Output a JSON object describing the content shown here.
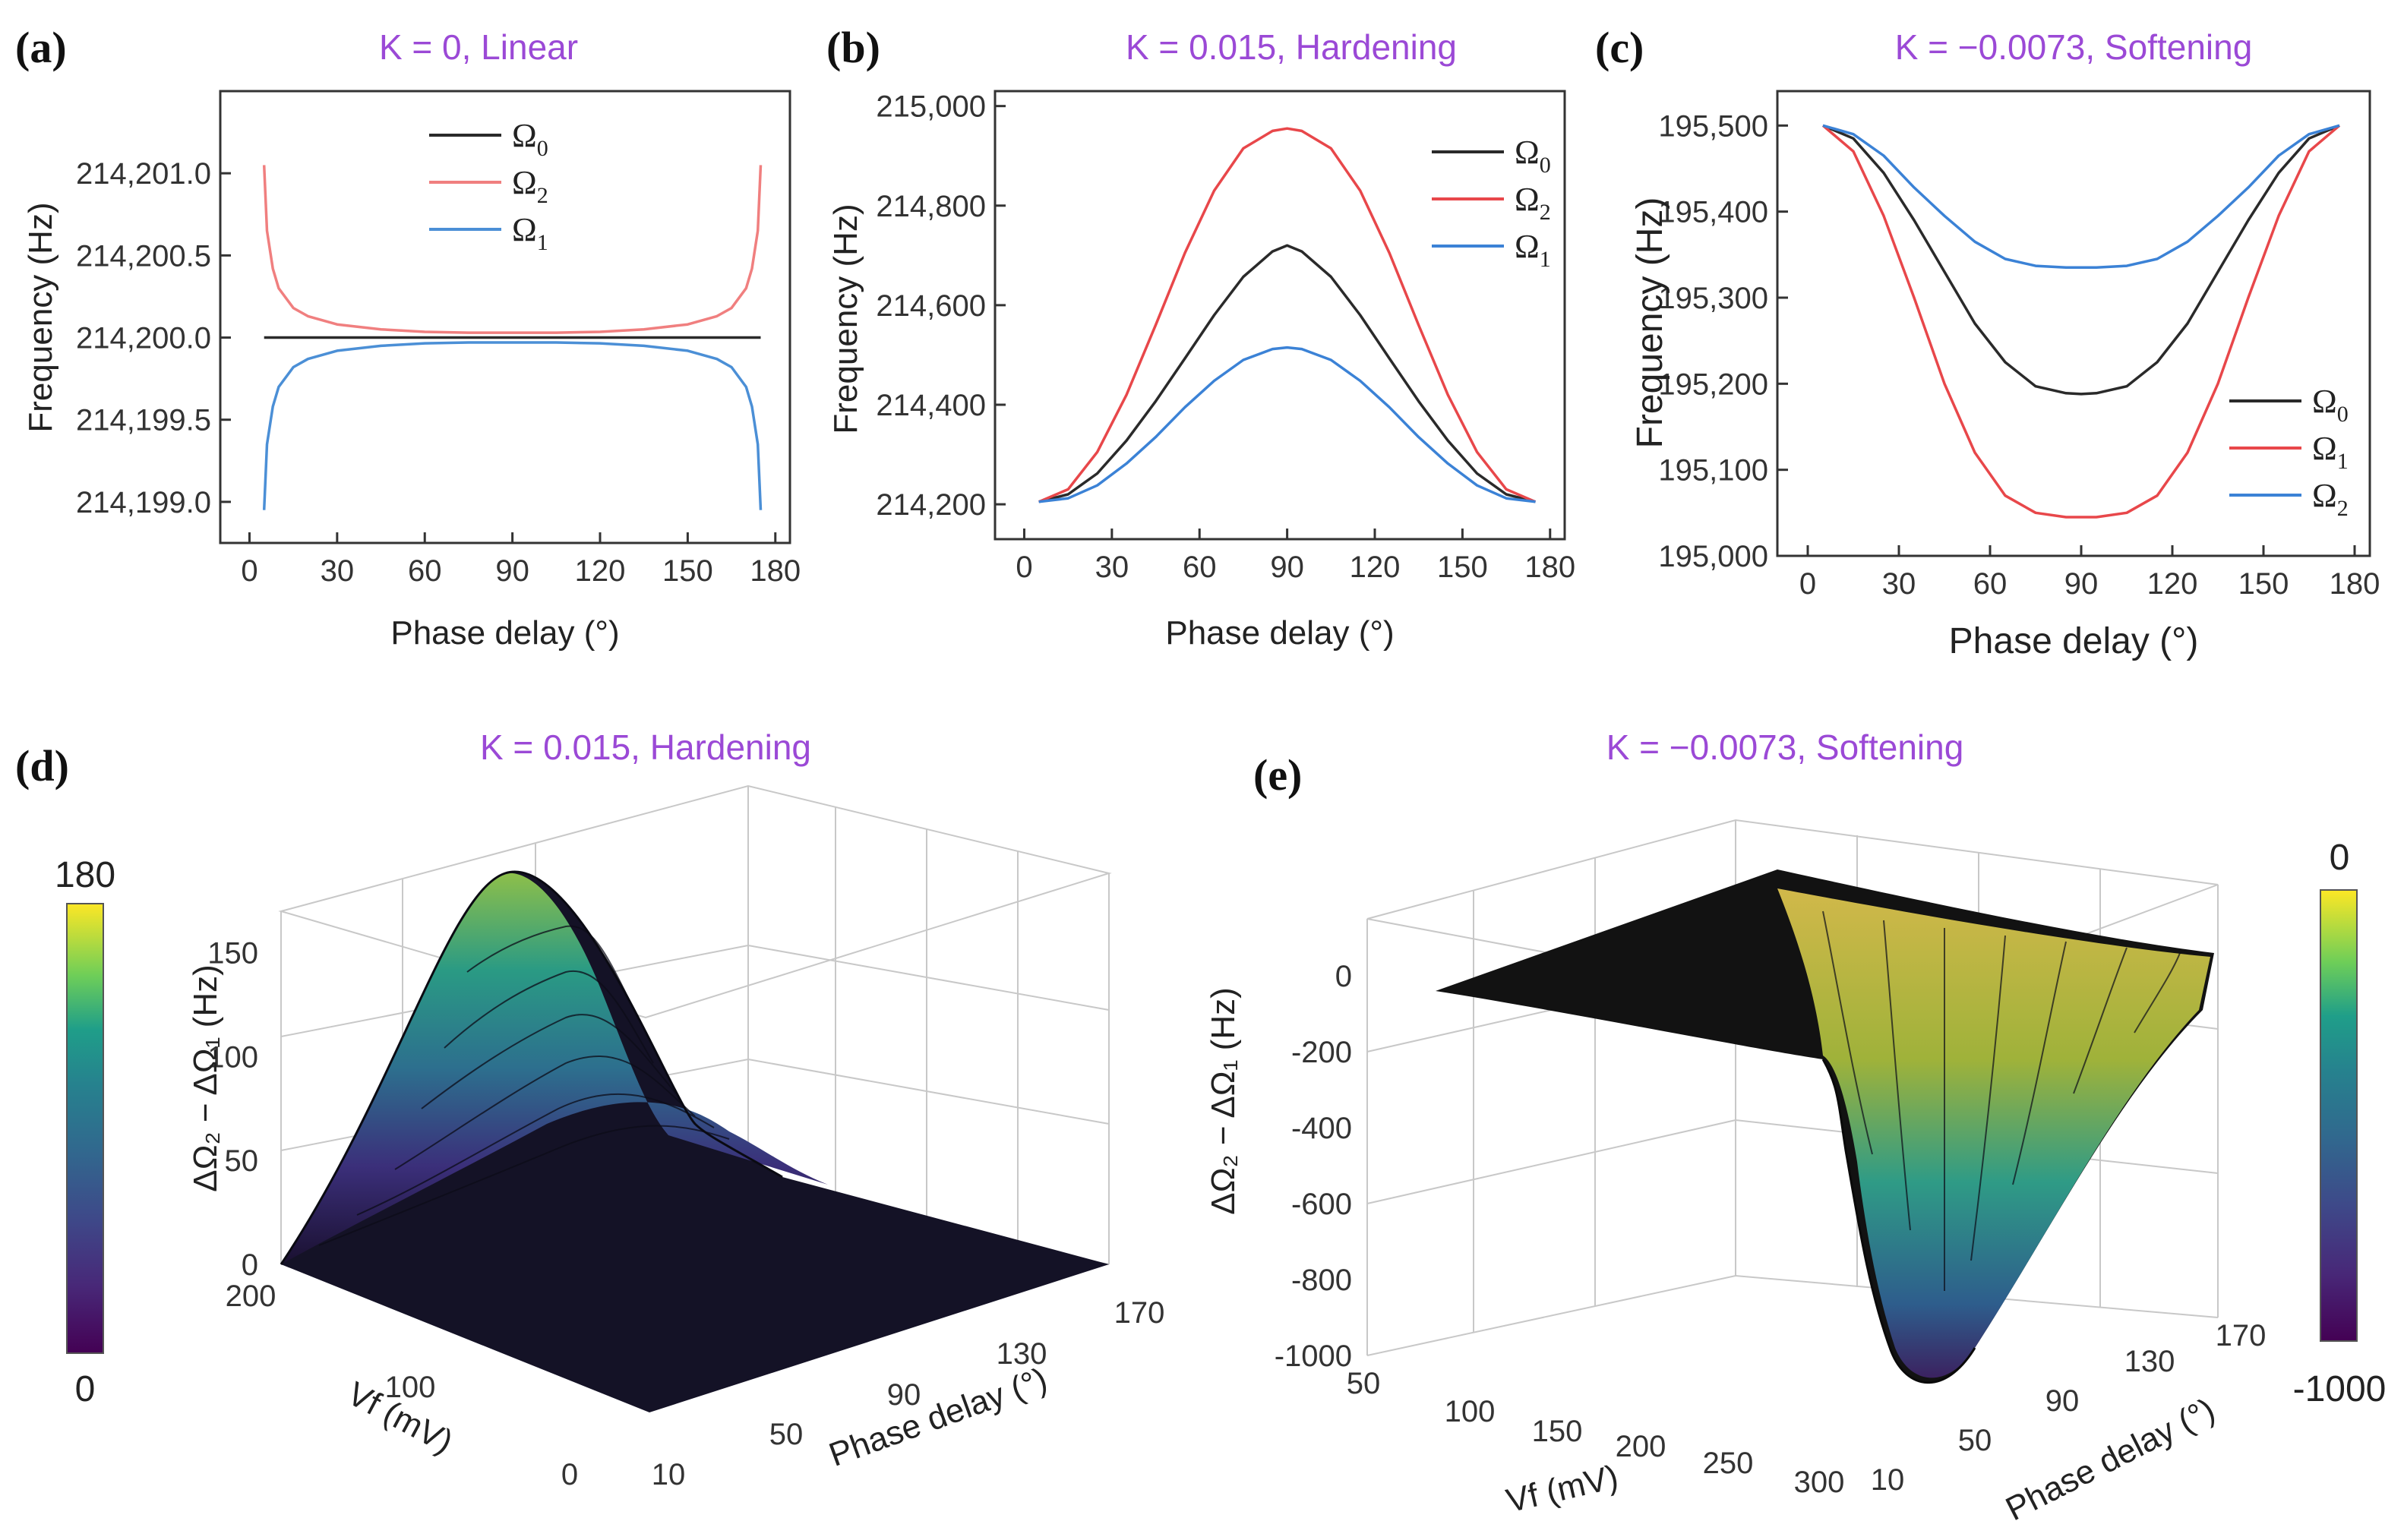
{
  "colors": {
    "black": "#2a2a2a",
    "red": "#e8474a",
    "blue": "#3b82d6",
    "redLight": "#f07f7f",
    "blueLight": "#4b8fd6",
    "title": "#9b49d6"
  },
  "chart_data": [
    {
      "id": "a",
      "panel_label": "(a)",
      "title": "K = 0, Linear",
      "type": "line",
      "xlabel": "Phase delay (°)",
      "ylabel": "Frequency (Hz)",
      "xlim": [
        -10,
        185
      ],
      "ylim": [
        214198.75,
        214201.5
      ],
      "xticks": [
        0,
        30,
        60,
        90,
        120,
        150,
        180
      ],
      "yticks": [
        214199.0,
        214199.5,
        214200.0,
        214200.5,
        214201.0
      ],
      "yticklabels": [
        "214,199.0",
        "214,199.5",
        "214,200.0",
        "214,200.5",
        "214,201.0"
      ],
      "x": [
        5,
        6,
        8,
        10,
        15,
        20,
        30,
        45,
        60,
        75,
        90,
        105,
        120,
        135,
        150,
        160,
        165,
        170,
        172,
        174,
        175
      ],
      "series": [
        {
          "name": "Ω0",
          "color": "black",
          "values": [
            214200.0,
            214200.0,
            214200.0,
            214200.0,
            214200.0,
            214200.0,
            214200.0,
            214200.0,
            214200.0,
            214200.0,
            214200.0,
            214200.0,
            214200.0,
            214200.0,
            214200.0,
            214200.0,
            214200.0,
            214200.0,
            214200.0,
            214200.0,
            214200.0
          ]
        },
        {
          "name": "Ω2",
          "color": "redLight",
          "values": [
            214201.05,
            214200.65,
            214200.42,
            214200.3,
            214200.18,
            214200.13,
            214200.08,
            214200.05,
            214200.035,
            214200.03,
            214200.03,
            214200.03,
            214200.035,
            214200.05,
            214200.08,
            214200.13,
            214200.18,
            214200.3,
            214200.42,
            214200.65,
            214201.05
          ]
        },
        {
          "name": "Ω1",
          "color": "blueLight",
          "values": [
            214198.95,
            214199.35,
            214199.58,
            214199.7,
            214199.82,
            214199.87,
            214199.92,
            214199.95,
            214199.965,
            214199.97,
            214199.97,
            214199.97,
            214199.965,
            214199.95,
            214199.92,
            214199.87,
            214199.82,
            214199.7,
            214199.58,
            214199.35,
            214198.95
          ]
        }
      ],
      "legend": [
        {
          "label": "Ω",
          "sub": "0",
          "color": "black"
        },
        {
          "label": "Ω",
          "sub": "2",
          "color": "redLight"
        },
        {
          "label": "Ω",
          "sub": "1",
          "color": "blueLight"
        }
      ],
      "legend_position": "top-center"
    },
    {
      "id": "b",
      "panel_label": "(b)",
      "title": "K = 0.015, Hardening",
      "type": "line",
      "xlabel": "Phase delay (°)",
      "ylabel": "Frequency (Hz)",
      "xlim": [
        -10,
        185
      ],
      "ylim": [
        214130,
        215030
      ],
      "xticks": [
        0,
        30,
        60,
        90,
        120,
        150,
        180
      ],
      "yticks": [
        214200,
        214400,
        214600,
        214800,
        215000
      ],
      "yticklabels": [
        "214,200",
        "214,400",
        "214,600",
        "214,800",
        "215,000"
      ],
      "x": [
        5,
        15,
        25,
        35,
        45,
        55,
        65,
        75,
        85,
        90,
        95,
        105,
        115,
        125,
        135,
        145,
        155,
        165,
        175
      ],
      "series": [
        {
          "name": "Ω0",
          "color": "black",
          "values": [
            214205,
            214220,
            214262,
            214328,
            214407,
            214493,
            214580,
            214657,
            214708,
            214720,
            214708,
            214657,
            214580,
            214493,
            214407,
            214328,
            214262,
            214220,
            214205
          ]
        },
        {
          "name": "Ω2",
          "color": "red",
          "values": [
            214205,
            214230,
            214305,
            214420,
            214560,
            214705,
            214830,
            214915,
            214950,
            214955,
            214950,
            214915,
            214830,
            214705,
            214560,
            214420,
            214305,
            214230,
            214205
          ]
        },
        {
          "name": "Ω1",
          "color": "blue",
          "values": [
            214205,
            214212,
            214238,
            214282,
            214335,
            214395,
            214448,
            214490,
            214512,
            214515,
            214512,
            214490,
            214448,
            214395,
            214335,
            214282,
            214238,
            214212,
            214205
          ]
        }
      ],
      "legend": [
        {
          "label": "Ω",
          "sub": "0",
          "color": "black"
        },
        {
          "label": "Ω",
          "sub": "2",
          "color": "red"
        },
        {
          "label": "Ω",
          "sub": "1",
          "color": "blue"
        }
      ],
      "legend_position": "top-right"
    },
    {
      "id": "c",
      "panel_label": "(c)",
      "title": "K = −0.0073, Softening",
      "type": "line",
      "xlabel": "Phase delay (°)",
      "ylabel": "Frequency (Hz)",
      "xlim": [
        -10,
        185
      ],
      "ylim": [
        195000,
        195540
      ],
      "xticks": [
        0,
        30,
        60,
        90,
        120,
        150,
        180
      ],
      "yticks": [
        195000,
        195100,
        195200,
        195300,
        195400,
        195500
      ],
      "yticklabels": [
        "195,000",
        "195,100",
        "195,200",
        "195,300",
        "195,400",
        "195,500"
      ],
      "x": [
        5,
        15,
        25,
        35,
        45,
        55,
        65,
        75,
        85,
        90,
        95,
        105,
        115,
        125,
        135,
        145,
        155,
        165,
        175
      ],
      "series": [
        {
          "name": "Ω0",
          "color": "black",
          "values": [
            195500,
            195485,
            195445,
            195390,
            195330,
            195270,
            195225,
            195197,
            195189,
            195188,
            195189,
            195197,
            195225,
            195270,
            195330,
            195390,
            195445,
            195485,
            195500
          ]
        },
        {
          "name": "Ω1",
          "color": "red",
          "values": [
            195500,
            195470,
            195395,
            195300,
            195200,
            195120,
            195070,
            195050,
            195045,
            195045,
            195045,
            195050,
            195070,
            195120,
            195200,
            195300,
            195395,
            195470,
            195500
          ]
        },
        {
          "name": "Ω2",
          "color": "blue",
          "values": [
            195500,
            195490,
            195465,
            195428,
            195395,
            195365,
            195345,
            195337,
            195335,
            195335,
            195335,
            195337,
            195345,
            195365,
            195395,
            195428,
            195465,
            195490,
            195500
          ]
        }
      ],
      "legend": [
        {
          "label": "Ω",
          "sub": "0",
          "color": "black"
        },
        {
          "label": "Ω",
          "sub": "1",
          "color": "red"
        },
        {
          "label": "Ω",
          "sub": "2",
          "color": "blue"
        }
      ],
      "legend_position": "bottom-right"
    },
    {
      "id": "d",
      "panel_label": "(d)",
      "title": "K = 0.015, Hardening",
      "type": "surface",
      "zlabel": "ΔΩ₂ − ΔΩ₁ (Hz)",
      "vlabel": "Vf (mV)",
      "plabel": "Phase delay (°)",
      "zticks": [
        0,
        50,
        100,
        150
      ],
      "zlim": [
        0,
        170
      ],
      "vticks": [
        0,
        100,
        200
      ],
      "pticks": [
        10,
        50,
        90,
        130,
        170
      ],
      "peak": {
        "phase_deg": 90,
        "vf_mv": 220,
        "value_hz": 170
      },
      "colorbar": {
        "min": "0",
        "max": "180"
      }
    },
    {
      "id": "e",
      "panel_label": "(e)",
      "title": "K = −0.0073, Softening",
      "type": "surface",
      "zlabel": "ΔΩ₂ − ΔΩ₁ (Hz)",
      "vlabel": "Vf (mV)",
      "plabel": "Phase delay (°)",
      "zticks": [
        0,
        -200,
        -400,
        -600,
        -800,
        -1000
      ],
      "zlim": [
        -1000,
        150
      ],
      "vticks": [
        50,
        100,
        150,
        200,
        250,
        300
      ],
      "pticks": [
        10,
        50,
        90,
        130,
        170
      ],
      "trough": {
        "phase_deg": 90,
        "vf_mv": 300,
        "value_hz": -1000
      },
      "colorbar": {
        "min": "-1000",
        "max": "0"
      }
    }
  ]
}
